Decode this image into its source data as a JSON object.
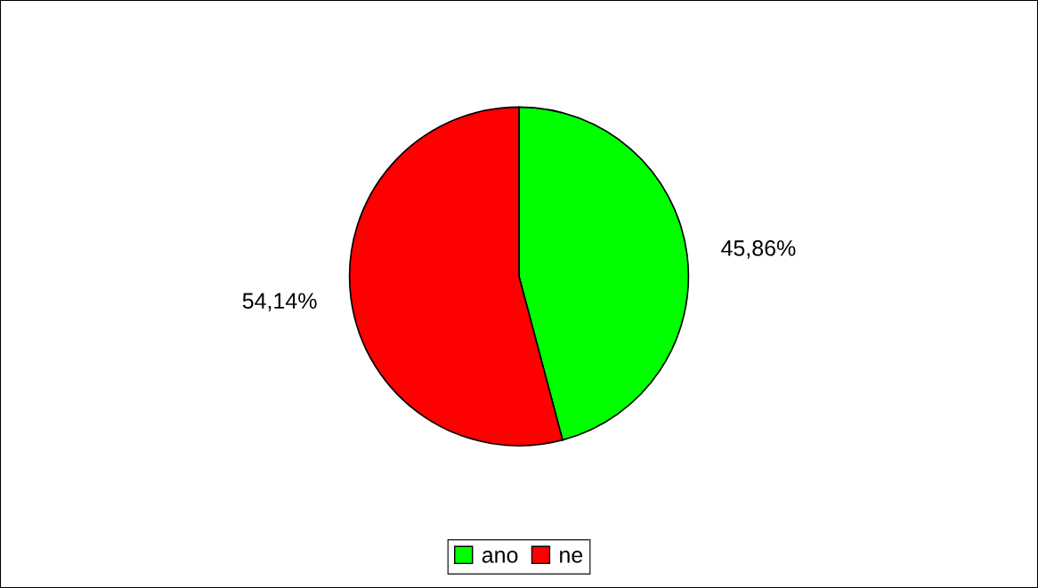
{
  "chart_data": {
    "type": "pie",
    "categories": [
      "ano",
      "ne"
    ],
    "values": [
      45.86,
      54.14
    ],
    "colors": [
      "#00ff00",
      "#ff0000"
    ],
    "value_labels": [
      "45,86%",
      "54,14%"
    ],
    "legend": "bottom"
  }
}
